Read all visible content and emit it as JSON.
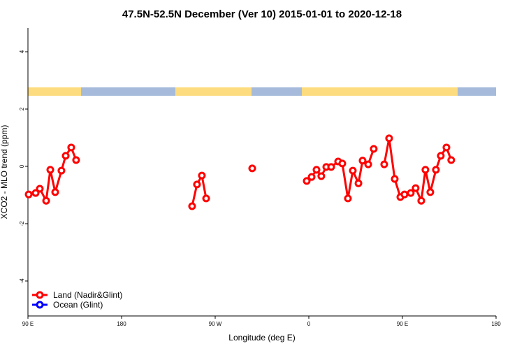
{
  "chart_data": {
    "type": "line",
    "title": "47.5N-52.5N December (Ver 10)   2015-01-01 to 2020-12-18",
    "xlabel": "Longitude (deg E)",
    "ylabel": "XCO2 - MLO trend (ppm)",
    "x": [
      90.7,
      97.4,
      101.4,
      107.5,
      111.5,
      116.2,
      122.2,
      126.3,
      131.6,
      136.3,
      null,
      247.8,
      252.5,
      257.2,
      261.3,
      null,
      305.6,
      null,
      358,
      362.7,
      367.4,
      372,
      376.8,
      381.5,
      388.2,
      392.2,
      397.6,
      402.3,
      407.7,
      411.7,
      417.1,
      422.4,
      null,
      432.5,
      437.2,
      442.6,
      448,
      452,
      458,
      462.7,
      468.1,
      472.1,
      476.8,
      482.2,
      486.9,
      492.3,
      496.9
    ],
    "series": [
      {
        "name": "Land (Nadir&Glint)",
        "color": "#ff0000",
        "values": [
          -0.98,
          -0.93,
          -0.78,
          -1.2,
          -0.12,
          -0.9,
          -0.15,
          0.37,
          0.66,
          0.22,
          null,
          -1.39,
          -0.63,
          -0.32,
          -1.12,
          null,
          -0.07,
          null,
          -0.51,
          -0.37,
          -0.12,
          -0.34,
          -0.02,
          -0.02,
          0.17,
          0.1,
          -1.12,
          -0.15,
          -0.59,
          0.2,
          0.07,
          0.61,
          null,
          0.07,
          0.98,
          -0.44,
          -1.07,
          -0.98,
          -0.93,
          -0.76,
          -1.2,
          -0.12,
          -0.9,
          -0.12,
          0.37,
          0.66,
          0.22
        ]
      },
      {
        "name": "Ocean (Glint)",
        "color": "#0000ff",
        "values": [
          null,
          null,
          null,
          null,
          null,
          null,
          null,
          null,
          null,
          null,
          null,
          null,
          null,
          null,
          null,
          null,
          null,
          null,
          null,
          null,
          null,
          null,
          null,
          null,
          null,
          null,
          null,
          null,
          null,
          null,
          null,
          null,
          null,
          null,
          null,
          null,
          null,
          null,
          null,
          null,
          null,
          null,
          null,
          null,
          null,
          null,
          null
        ]
      }
    ],
    "xlim": [
      90,
      540
    ],
    "xticks": [
      {
        "value": 90,
        "label": "90 E"
      },
      180,
      {
        "value": 270,
        "label": "90 W"
      },
      {
        "value": 360,
        "label": "0"
      },
      {
        "value": 450,
        "label": "90 E"
      },
      {
        "value": 540,
        "label": "180"
      }
    ],
    "ylim": [
      -5.22,
      4.83
    ],
    "yticks": [
      -4,
      -2,
      0,
      2,
      4
    ],
    "legend": "bottom-left"
  }
}
